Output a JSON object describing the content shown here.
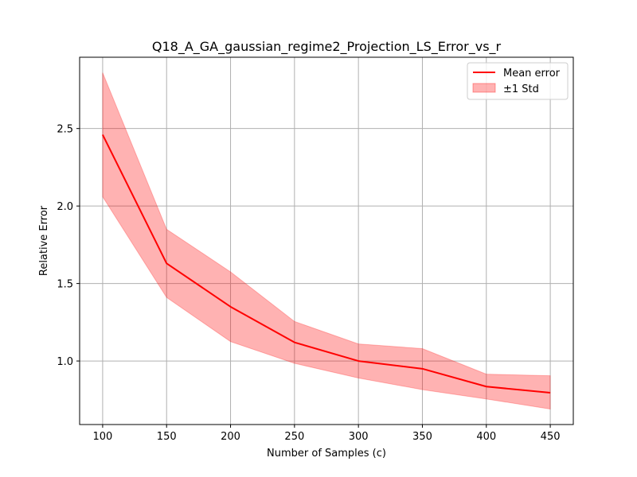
{
  "chart_data": {
    "type": "line",
    "title": "Q18_A_GA_gaussian_regime2_Projection_LS_Error_vs_r",
    "xlabel": "Number of Samples (c)",
    "ylabel": "Relative Error",
    "x": [
      100,
      150,
      200,
      250,
      300,
      350,
      400,
      450
    ],
    "xticks": [
      "100",
      "150",
      "200",
      "250",
      "300",
      "350",
      "400",
      "450"
    ],
    "yticks": [
      "1.0",
      "1.5",
      "2.0",
      "2.5"
    ],
    "xlim": [
      82,
      468
    ],
    "ylim": [
      0.59,
      2.96
    ],
    "grid": true,
    "legend_position": "top-right",
    "series": [
      {
        "name": "Mean error",
        "values": [
          2.46,
          1.63,
          1.35,
          1.12,
          1.0,
          0.95,
          0.835,
          0.795
        ],
        "color": "#ff0000"
      }
    ],
    "band": {
      "name": "±1 Std",
      "upper": [
        2.86,
        1.85,
        1.575,
        1.255,
        1.11,
        1.08,
        0.915,
        0.905
      ],
      "lower": [
        2.06,
        1.41,
        1.125,
        0.985,
        0.89,
        0.815,
        0.755,
        0.69
      ],
      "color": "#ff0000",
      "opacity": 0.3
    }
  }
}
